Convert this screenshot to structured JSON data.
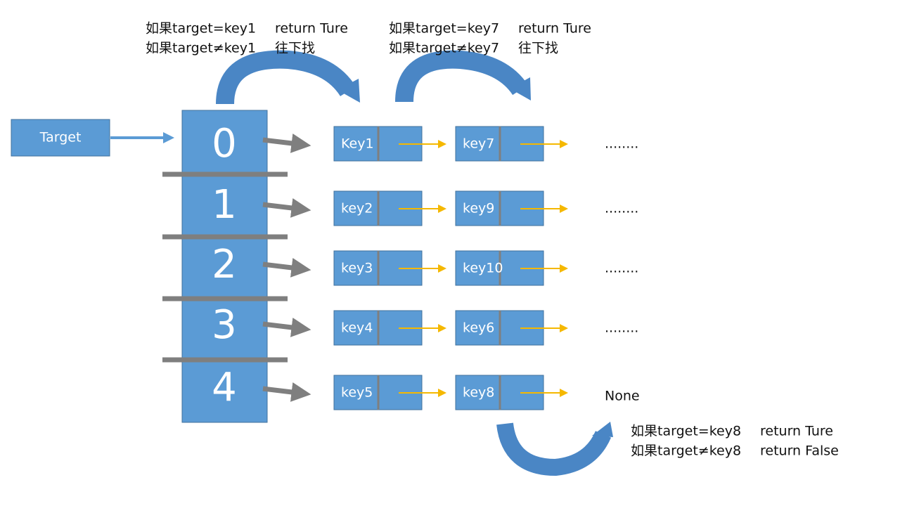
{
  "target": "Target",
  "buckets": [
    "0",
    "1",
    "2",
    "3",
    "4"
  ],
  "rows": [
    {
      "nodes": [
        "Key1",
        "key7"
      ],
      "end": "........"
    },
    {
      "nodes": [
        "key2",
        "key9"
      ],
      "end": "........"
    },
    {
      "nodes": [
        "key3",
        "key10"
      ],
      "end": "........"
    },
    {
      "nodes": [
        "key4",
        "key6"
      ],
      "end": "........"
    },
    {
      "nodes": [
        "key5",
        "key8"
      ],
      "end": "None"
    }
  ],
  "annotations": [
    {
      "lines": [
        [
          "如果target=key1",
          "return Ture"
        ],
        [
          "如果target≠key1",
          "往下找"
        ]
      ]
    },
    {
      "lines": [
        [
          "如果target=key7",
          "return Ture"
        ],
        [
          "如果target≠key7",
          "往下找"
        ]
      ]
    },
    {
      "lines": [
        [
          "如果target=key8",
          "return Ture"
        ],
        [
          "如果target≠key8",
          "return False"
        ]
      ]
    }
  ]
}
